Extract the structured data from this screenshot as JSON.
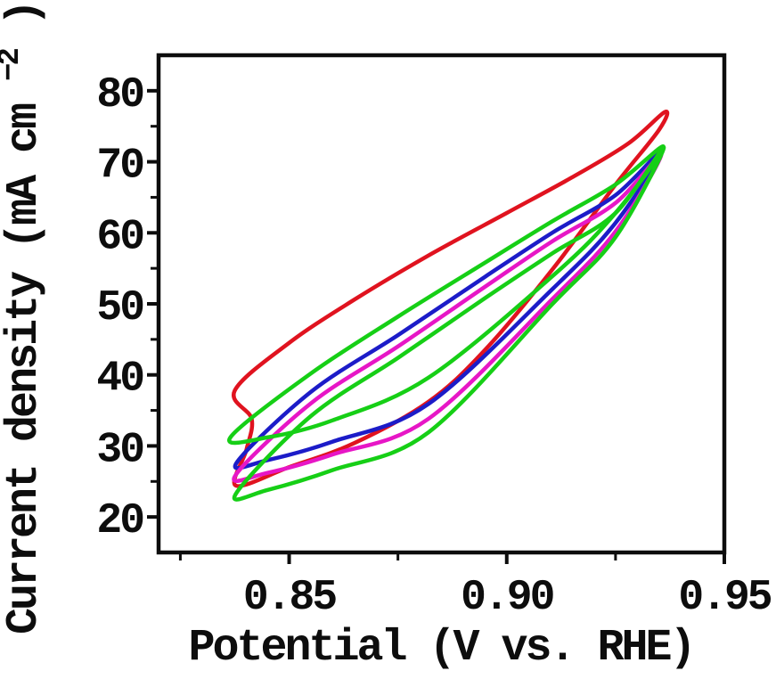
{
  "chart_data": {
    "type": "line",
    "subtype": "cyclic-voltammetry-loops",
    "title": "",
    "xlabel": "Potential (V vs. RHE)",
    "ylabel": "Current density (mA cm-2)",
    "ylabel_parts": {
      "pre": "Current density (mA cm",
      "sup": "−2",
      "post": ")"
    },
    "xlim": [
      0.82,
      0.95
    ],
    "ylim": [
      15,
      85
    ],
    "grid": false,
    "legend": null,
    "axis_color": "#0d0d0d",
    "x_ticks": {
      "major": [
        0.85,
        0.9,
        0.95
      ],
      "labels": [
        "0.85",
        "0.90",
        "0.95"
      ],
      "minor": [
        0.825,
        0.875,
        0.925
      ]
    },
    "y_ticks": {
      "major": [
        20,
        30,
        40,
        50,
        60,
        70,
        80
      ],
      "labels": [
        "20",
        "30",
        "40",
        "50",
        "60",
        "70",
        "80"
      ],
      "minor": [
        25,
        35,
        45,
        55,
        65,
        75
      ]
    },
    "series": [
      {
        "name": "red-loop",
        "color": "#e0131f",
        "closed": true,
        "points": [
          [
            0.8375,
            37.8
          ],
          [
            0.85,
            44.5
          ],
          [
            0.865,
            50.6
          ],
          [
            0.882,
            56.8
          ],
          [
            0.9,
            62.8
          ],
          [
            0.915,
            67.8
          ],
          [
            0.928,
            72.6
          ],
          [
            0.9363,
            77.0
          ],
          [
            0.935,
            74.5
          ],
          [
            0.925,
            66.8
          ],
          [
            0.9107,
            55.0
          ],
          [
            0.895,
            43.5
          ],
          [
            0.882,
            36.2
          ],
          [
            0.865,
            30.4
          ],
          [
            0.85,
            27.0
          ],
          [
            0.8378,
            24.4
          ],
          [
            0.8402,
            29.5
          ],
          [
            0.8414,
            33.8
          ]
        ]
      },
      {
        "name": "blue-loop",
        "color": "#1c1cc8",
        "closed": true,
        "points": [
          [
            0.8379,
            27.6
          ],
          [
            0.855,
            37.6
          ],
          [
            0.875,
            45.6
          ],
          [
            0.895,
            53.8
          ],
          [
            0.9107,
            60.1
          ],
          [
            0.925,
            65.3
          ],
          [
            0.9358,
            71.6
          ],
          [
            0.925,
            61.4
          ],
          [
            0.9107,
            52.2
          ],
          [
            0.882,
            35.9
          ],
          [
            0.86,
            30.6
          ],
          [
            0.845,
            28.0
          ]
        ]
      },
      {
        "name": "magenta-loop",
        "color": "#e716c6",
        "closed": true,
        "points": [
          [
            0.8376,
            25.8
          ],
          [
            0.855,
            36.0
          ],
          [
            0.875,
            44.0
          ],
          [
            0.895,
            52.4
          ],
          [
            0.9107,
            58.9
          ],
          [
            0.925,
            64.2
          ],
          [
            0.9355,
            71.0
          ],
          [
            0.925,
            60.2
          ],
          [
            0.9107,
            50.8
          ],
          [
            0.882,
            33.8
          ],
          [
            0.86,
            28.8
          ],
          [
            0.845,
            26.2
          ]
        ]
      },
      {
        "name": "green-loop-outer",
        "color": "#16cf16",
        "closed": true,
        "points": [
          [
            0.8365,
            31.2
          ],
          [
            0.855,
            40.2
          ],
          [
            0.875,
            48.2
          ],
          [
            0.895,
            55.8
          ],
          [
            0.9107,
            61.7
          ],
          [
            0.925,
            66.8
          ],
          [
            0.936,
            72.1
          ],
          [
            0.925,
            62.8
          ],
          [
            0.9107,
            54.0
          ],
          [
            0.882,
            39.6
          ],
          [
            0.86,
            33.6
          ],
          [
            0.845,
            31.2
          ]
        ]
      },
      {
        "name": "green-loop-inner",
        "color": "#16cf16",
        "closed": true,
        "points": [
          [
            0.8377,
            23.2
          ],
          [
            0.855,
            34.2
          ],
          [
            0.875,
            42.4
          ],
          [
            0.895,
            50.8
          ],
          [
            0.9107,
            57.2
          ],
          [
            0.925,
            62.8
          ],
          [
            0.9361,
            72.0
          ],
          [
            0.925,
            59.4
          ],
          [
            0.9107,
            50.1
          ],
          [
            0.882,
            31.9
          ],
          [
            0.86,
            26.6
          ],
          [
            0.845,
            23.8
          ]
        ]
      }
    ]
  }
}
